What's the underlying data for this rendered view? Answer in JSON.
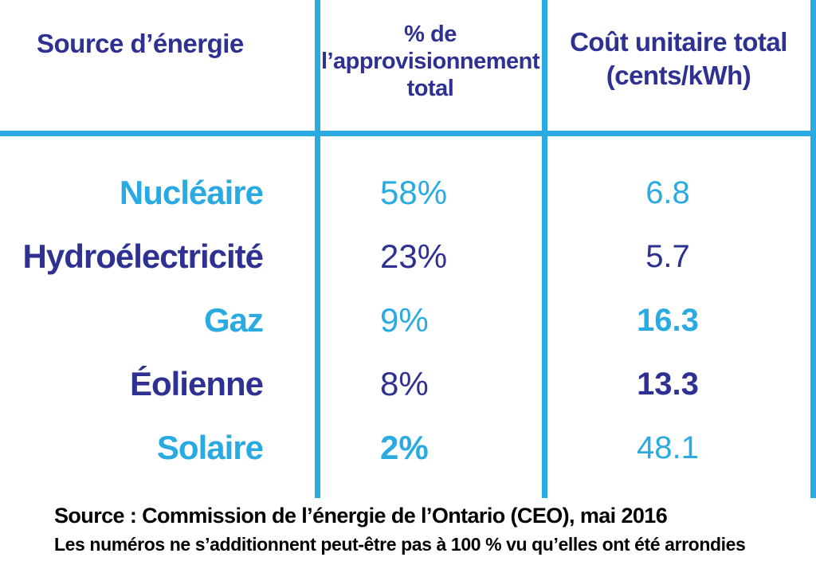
{
  "colors": {
    "dark_blue": "#2E3192",
    "light_blue": "#29ABE2",
    "line": "#29ABE2",
    "footer_text": "#000000"
  },
  "table": {
    "headers": {
      "source": "Source d’énergie",
      "share_lines": [
        "% de",
        "l’approvisionnement",
        "total"
      ],
      "cost_lines": [
        "Coût unitaire total",
        "(cents/kWh)"
      ]
    },
    "rows": [
      {
        "source": "Nucléaire",
        "share": "58%",
        "cost": "6.8"
      },
      {
        "source": "Hydroélectricité",
        "share": "23%",
        "cost": "5.7"
      },
      {
        "source": "Gaz",
        "share": "9%",
        "cost": "16.3"
      },
      {
        "source": "Éolienne",
        "share": "8%",
        "cost": "13.3"
      },
      {
        "source": "Solaire",
        "share": "2%",
        "cost": "48.1"
      }
    ]
  },
  "footer": {
    "source_line": "Source : Commission de l’énergie de l’Ontario (CEO), mai 2016",
    "note_line": "Les numéros ne s’additionnent peut-être pas à 100 % vu qu’elles ont été arrondies"
  },
  "chart_data": {
    "type": "table",
    "title": "",
    "columns": [
      "Source d’énergie",
      "% de l’approvisionnement total",
      "Coût unitaire total (cents/kWh)"
    ],
    "categories": [
      "Nucléaire",
      "Hydroélectricité",
      "Gaz",
      "Éolienne",
      "Solaire"
    ],
    "series": [
      {
        "name": "% de l’approvisionnement total",
        "values": [
          58,
          23,
          9,
          8,
          2
        ],
        "unit": "%"
      },
      {
        "name": "Coût unitaire total",
        "values": [
          6.8,
          5.7,
          16.3,
          13.3,
          48.1
        ],
        "unit": "cents/kWh"
      }
    ],
    "source": "Commission de l’énergie de l’Ontario (CEO), mai 2016"
  }
}
